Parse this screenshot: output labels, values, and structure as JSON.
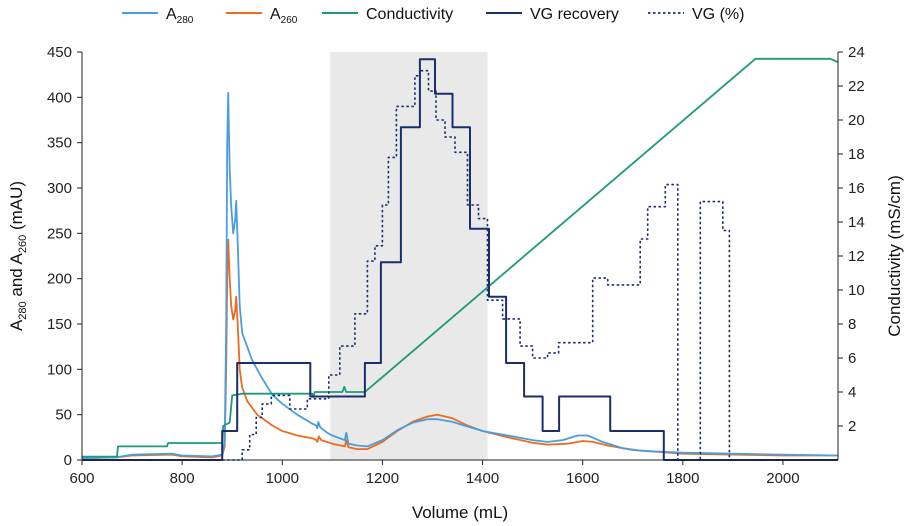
{
  "chart_data": {
    "type": "line",
    "title": "",
    "xlabel": "Volume (mL)",
    "ylabel_left": {
      "main": "A",
      "sub1": "280",
      "mid": " and A",
      "sub2": "260",
      "tail": " (mAU)"
    },
    "ylabel_right": "Conductivity (mS/cm)",
    "xlim": [
      600,
      2110
    ],
    "ylim_left": [
      0,
      450
    ],
    "ylim_right": [
      0,
      24
    ],
    "x_ticks": [
      "600",
      "800",
      "1000",
      "1200",
      "1400",
      "1600",
      "1800",
      "2000"
    ],
    "y_left_ticks": [
      "0",
      "50",
      "100",
      "150",
      "200",
      "250",
      "300",
      "350",
      "400",
      "450"
    ],
    "y_right_ticks": [
      "2",
      "4",
      "6",
      "8",
      "10",
      "12",
      "14",
      "16",
      "18",
      "20",
      "22",
      "24"
    ],
    "grid": false,
    "legend_position": "top",
    "shaded_region": {
      "x": [
        1096,
        1410
      ],
      "color": "#e9e9e9"
    },
    "series": [
      {
        "name": "A280",
        "label_main": "A",
        "label_sub": "280",
        "color": "#4a9ee0",
        "axis": "left",
        "style": "solid",
        "points": [
          [
            600,
            2
          ],
          [
            670,
            3
          ],
          [
            700,
            6
          ],
          [
            780,
            7
          ],
          [
            800,
            5
          ],
          [
            860,
            4
          ],
          [
            880,
            6
          ],
          [
            885,
            20
          ],
          [
            888,
            150
          ],
          [
            890,
            350
          ],
          [
            892,
            405
          ],
          [
            895,
            320
          ],
          [
            898,
            280
          ],
          [
            902,
            250
          ],
          [
            906,
            265
          ],
          [
            908,
            286
          ],
          [
            911,
            240
          ],
          [
            915,
            170
          ],
          [
            920,
            140
          ],
          [
            930,
            125
          ],
          [
            940,
            110
          ],
          [
            960,
            90
          ],
          [
            980,
            72
          ],
          [
            1000,
            62
          ],
          [
            1030,
            50
          ],
          [
            1060,
            40
          ],
          [
            1068,
            38
          ],
          [
            1070,
            35
          ],
          [
            1072,
            42
          ],
          [
            1076,
            36
          ],
          [
            1090,
            30
          ],
          [
            1100,
            27
          ],
          [
            1125,
            22
          ],
          [
            1128,
            30
          ],
          [
            1132,
            18
          ],
          [
            1150,
            16
          ],
          [
            1170,
            15
          ],
          [
            1200,
            22
          ],
          [
            1230,
            33
          ],
          [
            1260,
            41
          ],
          [
            1290,
            45
          ],
          [
            1310,
            45
          ],
          [
            1340,
            42
          ],
          [
            1370,
            37
          ],
          [
            1400,
            32
          ],
          [
            1450,
            27
          ],
          [
            1500,
            22
          ],
          [
            1530,
            20
          ],
          [
            1560,
            22
          ],
          [
            1590,
            27
          ],
          [
            1610,
            27
          ],
          [
            1640,
            20
          ],
          [
            1680,
            13
          ],
          [
            1720,
            10
          ],
          [
            1800,
            8
          ],
          [
            1900,
            7
          ],
          [
            2000,
            6
          ],
          [
            2110,
            5
          ]
        ]
      },
      {
        "name": "A260",
        "label_main": "A",
        "label_sub": "260",
        "color": "#ef6a1c",
        "axis": "left",
        "style": "solid",
        "points": [
          [
            600,
            2
          ],
          [
            670,
            3
          ],
          [
            700,
            5
          ],
          [
            780,
            6
          ],
          [
            800,
            4
          ],
          [
            860,
            3
          ],
          [
            880,
            5
          ],
          [
            885,
            15
          ],
          [
            888,
            100
          ],
          [
            890,
            200
          ],
          [
            892,
            243
          ],
          [
            895,
            200
          ],
          [
            898,
            170
          ],
          [
            902,
            155
          ],
          [
            906,
            165
          ],
          [
            908,
            180
          ],
          [
            911,
            150
          ],
          [
            915,
            100
          ],
          [
            920,
            80
          ],
          [
            930,
            65
          ],
          [
            950,
            50
          ],
          [
            980,
            38
          ],
          [
            1000,
            32
          ],
          [
            1030,
            27
          ],
          [
            1060,
            24
          ],
          [
            1068,
            22
          ],
          [
            1070,
            20
          ],
          [
            1073,
            26
          ],
          [
            1078,
            22
          ],
          [
            1100,
            18
          ],
          [
            1125,
            15
          ],
          [
            1128,
            22
          ],
          [
            1132,
            14
          ],
          [
            1150,
            12
          ],
          [
            1170,
            12
          ],
          [
            1200,
            20
          ],
          [
            1230,
            32
          ],
          [
            1260,
            42
          ],
          [
            1290,
            48
          ],
          [
            1310,
            50
          ],
          [
            1340,
            46
          ],
          [
            1370,
            38
          ],
          [
            1400,
            32
          ],
          [
            1450,
            25
          ],
          [
            1500,
            19
          ],
          [
            1530,
            17
          ],
          [
            1570,
            18
          ],
          [
            1600,
            21
          ],
          [
            1620,
            20
          ],
          [
            1650,
            16
          ],
          [
            1700,
            11
          ],
          [
            1750,
            9
          ],
          [
            1800,
            7
          ],
          [
            1900,
            6
          ],
          [
            2000,
            5
          ],
          [
            2110,
            5
          ]
        ]
      },
      {
        "name": "Conductivity",
        "color": "#1d9a78",
        "axis": "right",
        "style": "solid",
        "points": [
          [
            600,
            0.2
          ],
          [
            670,
            0.2
          ],
          [
            672,
            0.8
          ],
          [
            770,
            0.8
          ],
          [
            772,
            1.0
          ],
          [
            880,
            1.0
          ],
          [
            882,
            2.0
          ],
          [
            895,
            2.2
          ],
          [
            900,
            3.8
          ],
          [
            920,
            3.9
          ],
          [
            1000,
            3.9
          ],
          [
            1060,
            3.9
          ],
          [
            1062,
            3.7
          ],
          [
            1065,
            4.0
          ],
          [
            1120,
            4.0
          ],
          [
            1124,
            4.3
          ],
          [
            1128,
            4.0
          ],
          [
            1165,
            4.0
          ],
          [
            1945,
            23.6
          ],
          [
            2000,
            23.6
          ],
          [
            2095,
            23.6
          ],
          [
            2110,
            23.4
          ]
        ]
      },
      {
        "name": "VG recovery",
        "color": "#1b2e6b",
        "axis": "left",
        "style": "step",
        "points": [
          [
            600,
            0
          ],
          [
            880,
            0
          ],
          [
            880,
            32
          ],
          [
            910,
            32
          ],
          [
            910,
            107
          ],
          [
            1056,
            107
          ],
          [
            1056,
            70
          ],
          [
            1165,
            70
          ],
          [
            1165,
            107
          ],
          [
            1197,
            107
          ],
          [
            1197,
            218
          ],
          [
            1237,
            218
          ],
          [
            1237,
            367
          ],
          [
            1275,
            367
          ],
          [
            1275,
            442
          ],
          [
            1305,
            442
          ],
          [
            1305,
            404
          ],
          [
            1340,
            404
          ],
          [
            1340,
            367
          ],
          [
            1375,
            367
          ],
          [
            1375,
            255
          ],
          [
            1413,
            255
          ],
          [
            1413,
            180
          ],
          [
            1447,
            180
          ],
          [
            1447,
            107
          ],
          [
            1483,
            107
          ],
          [
            1483,
            70
          ],
          [
            1520,
            70
          ],
          [
            1520,
            32
          ],
          [
            1553,
            32
          ],
          [
            1553,
            70
          ],
          [
            1655,
            70
          ],
          [
            1655,
            32
          ],
          [
            1762,
            32
          ],
          [
            1762,
            0
          ],
          [
            2110,
            0
          ]
        ]
      },
      {
        "name": "VG (%)",
        "color": "#1b2e6b",
        "axis": "right",
        "style": "dotted-step",
        "points": [
          [
            880,
            0
          ],
          [
            920,
            0
          ],
          [
            920,
            0.6
          ],
          [
            935,
            0.6
          ],
          [
            935,
            1.5
          ],
          [
            948,
            1.5
          ],
          [
            948,
            2.5
          ],
          [
            960,
            2.5
          ],
          [
            960,
            3.3
          ],
          [
            978,
            3.3
          ],
          [
            978,
            3.8
          ],
          [
            1015,
            3.8
          ],
          [
            1015,
            3.0
          ],
          [
            1050,
            3.0
          ],
          [
            1050,
            3.6
          ],
          [
            1093,
            3.6
          ],
          [
            1093,
            5.0
          ],
          [
            1115,
            5.0
          ],
          [
            1115,
            6.7
          ],
          [
            1145,
            6.7
          ],
          [
            1145,
            8.6
          ],
          [
            1170,
            8.6
          ],
          [
            1170,
            11.7
          ],
          [
            1185,
            11.7
          ],
          [
            1185,
            12.6
          ],
          [
            1200,
            12.6
          ],
          [
            1200,
            15.0
          ],
          [
            1212,
            15.0
          ],
          [
            1212,
            17.8
          ],
          [
            1228,
            17.8
          ],
          [
            1228,
            20.8
          ],
          [
            1265,
            20.8
          ],
          [
            1265,
            22.6
          ],
          [
            1275,
            22.6
          ],
          [
            1275,
            22.9
          ],
          [
            1292,
            22.9
          ],
          [
            1292,
            21.7
          ],
          [
            1307,
            21.7
          ],
          [
            1307,
            20.0
          ],
          [
            1325,
            20.0
          ],
          [
            1325,
            19.0
          ],
          [
            1345,
            19.0
          ],
          [
            1345,
            18.1
          ],
          [
            1370,
            18.1
          ],
          [
            1370,
            15.0
          ],
          [
            1392,
            15.0
          ],
          [
            1392,
            14.2
          ],
          [
            1410,
            14.2
          ],
          [
            1410,
            9.4
          ],
          [
            1440,
            9.4
          ],
          [
            1440,
            8.3
          ],
          [
            1475,
            8.3
          ],
          [
            1475,
            6.7
          ],
          [
            1500,
            6.7
          ],
          [
            1500,
            6.0
          ],
          [
            1530,
            6.0
          ],
          [
            1530,
            6.3
          ],
          [
            1552,
            6.3
          ],
          [
            1552,
            6.9
          ],
          [
            1620,
            6.9
          ],
          [
            1620,
            10.7
          ],
          [
            1650,
            10.7
          ],
          [
            1650,
            10.3
          ],
          [
            1715,
            10.3
          ],
          [
            1715,
            13.0
          ],
          [
            1730,
            13.0
          ],
          [
            1730,
            14.9
          ],
          [
            1765,
            14.9
          ],
          [
            1765,
            16.2
          ],
          [
            1790,
            16.2
          ],
          [
            1790,
            0
          ],
          [
            1835,
            0
          ],
          [
            1835,
            15.2
          ],
          [
            1880,
            15.2
          ],
          [
            1880,
            13.5
          ],
          [
            1893,
            13.5
          ],
          [
            1893,
            0
          ],
          [
            2110,
            0
          ]
        ]
      }
    ]
  }
}
